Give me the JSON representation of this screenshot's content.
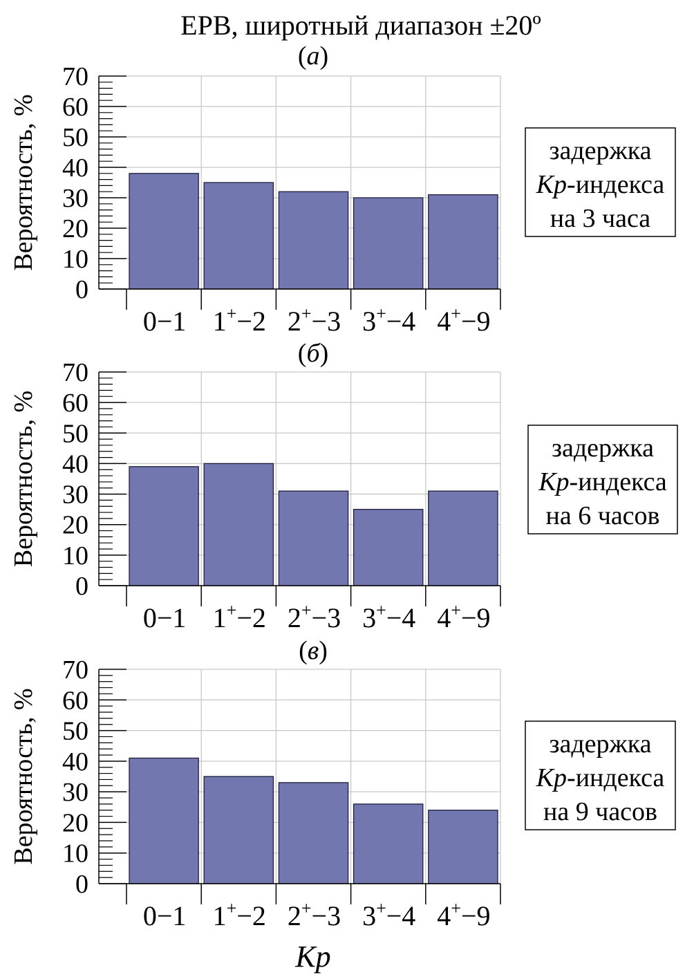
{
  "figure": {
    "title": "ЕРВ, широтный диапазон ±20º",
    "xlabel": "Kp"
  },
  "chart_data": [
    {
      "type": "bar",
      "panel_label": "(а)",
      "panel_letter": "а",
      "categories": [
        "0−1",
        "1+−2",
        "2+−3",
        "3+−4",
        "4+−9"
      ],
      "values": [
        38,
        35,
        32,
        30,
        31
      ],
      "ylabel": "Вероятность, %",
      "ylim": [
        0,
        70
      ],
      "yticks": [
        0,
        10,
        20,
        30,
        40,
        50,
        60,
        70
      ],
      "grid": true,
      "bar_color": "#7377b0",
      "annotation": [
        "задержка",
        "Kp-индекса",
        "на 3 часа"
      ]
    },
    {
      "type": "bar",
      "panel_label": "(б)",
      "panel_letter": "б",
      "categories": [
        "0−1",
        "1+−2",
        "2+−3",
        "3+−4",
        "4+−9"
      ],
      "values": [
        39,
        40,
        31,
        25,
        31
      ],
      "ylabel": "Вероятность, %",
      "ylim": [
        0,
        70
      ],
      "yticks": [
        0,
        10,
        20,
        30,
        40,
        50,
        60,
        70
      ],
      "grid": true,
      "bar_color": "#7377b0",
      "annotation": [
        "задержка",
        "Kp-индекса",
        "на 6 часов"
      ]
    },
    {
      "type": "bar",
      "panel_label": "(в)",
      "panel_letter": "в",
      "categories": [
        "0−1",
        "1+−2",
        "2+−3",
        "3+−4",
        "4+−9"
      ],
      "values": [
        41,
        35,
        33,
        26,
        24
      ],
      "ylabel": "Вероятность, %",
      "ylim": [
        0,
        70
      ],
      "yticks": [
        0,
        10,
        20,
        30,
        40,
        50,
        60,
        70
      ],
      "grid": true,
      "bar_color": "#7377b0",
      "annotation": [
        "задержка",
        "Kp-индекса",
        "на 9 часов"
      ]
    }
  ]
}
